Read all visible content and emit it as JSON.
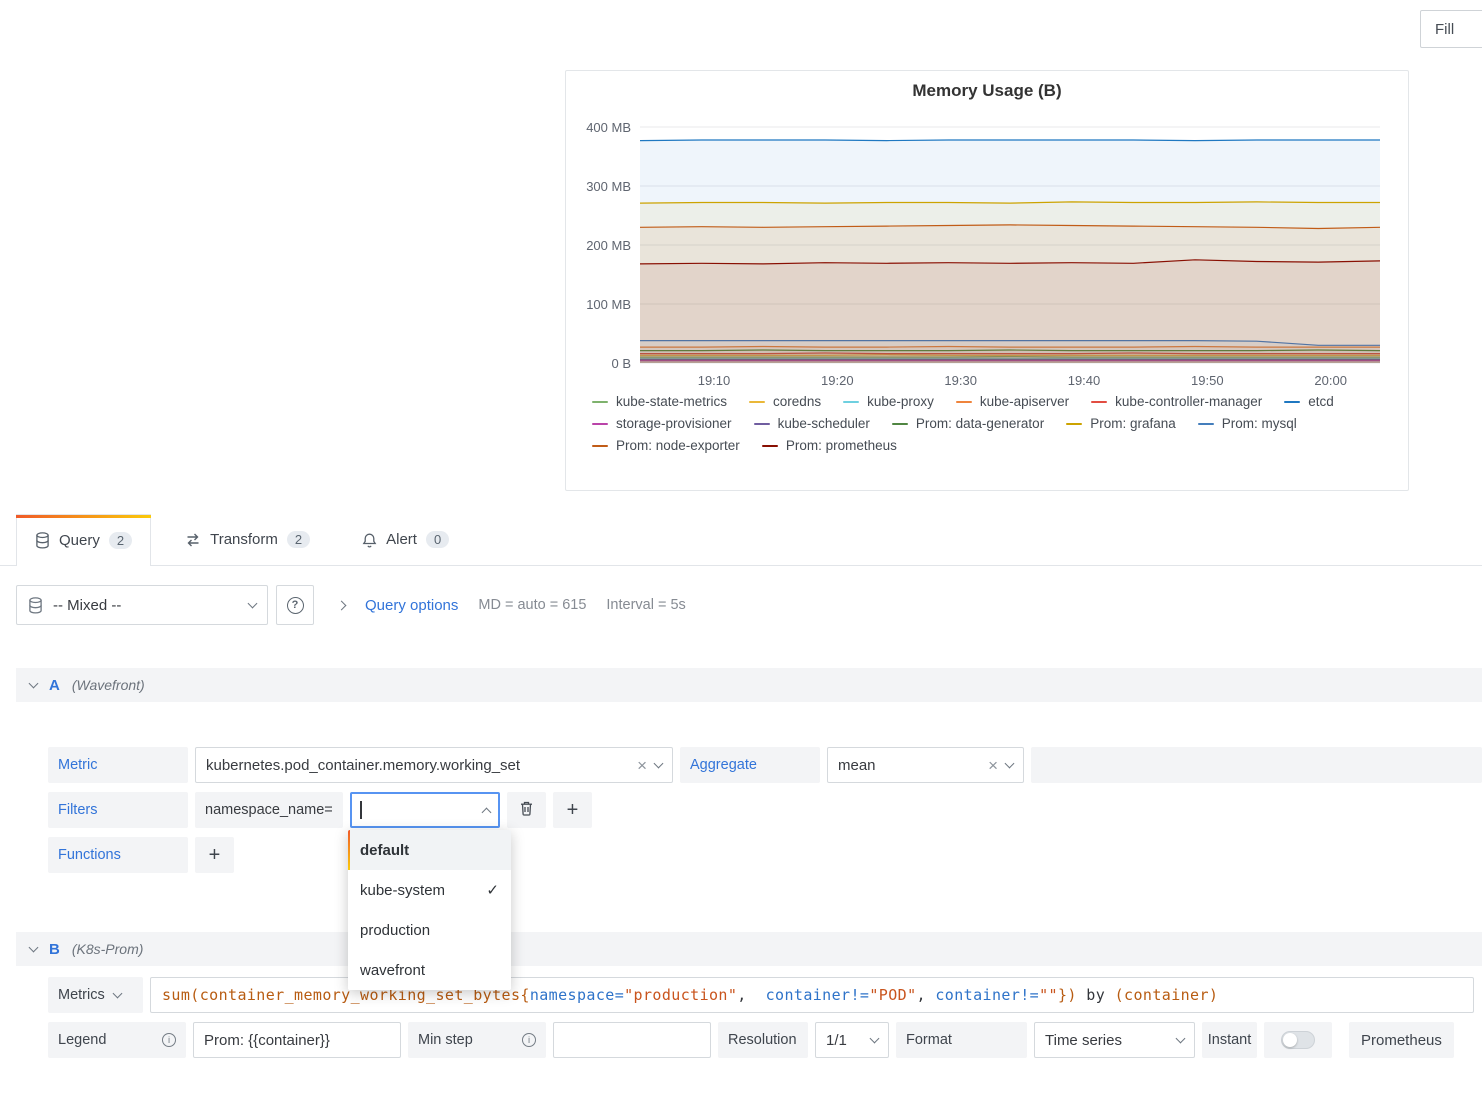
{
  "toolbar": {
    "fill": "Fill"
  },
  "panel": {
    "title": "Memory Usage (B)"
  },
  "tabs": [
    {
      "label": "Query",
      "count": "2"
    },
    {
      "label": "Transform",
      "count": "2"
    },
    {
      "label": "Alert",
      "count": "0"
    }
  ],
  "datasource_bar": {
    "selected": "-- Mixed --",
    "query_options_label": "Query options",
    "md_text": "MD = auto = 615",
    "interval_text": "Interval = 5s"
  },
  "query_a": {
    "ref": "A",
    "datasource": "(Wavefront)",
    "metric_label": "Metric",
    "metric_value": "kubernetes.pod_container.memory.working_set",
    "aggregate_label": "Aggregate",
    "aggregate_value": "mean",
    "filters_label": "Filters",
    "filter_key": "namespace_name=",
    "filter_input_value": "",
    "functions_label": "Functions",
    "dropdown_options": [
      {
        "label": "default",
        "highlighted": true,
        "selected": false
      },
      {
        "label": "kube-system",
        "highlighted": false,
        "selected": true
      },
      {
        "label": "production",
        "highlighted": false,
        "selected": false
      },
      {
        "label": "wavefront",
        "highlighted": false,
        "selected": false
      }
    ]
  },
  "query_b": {
    "ref": "B",
    "datasource": "(K8s-Prom)",
    "metrics_label": "Metrics",
    "expr_tokens": [
      {
        "text": "sum(container_memory_working_set_bytes{",
        "class": "tok-metric"
      },
      {
        "text": "namespace=",
        "class": "tok-label"
      },
      {
        "text": "\"production\"",
        "class": "tok-string"
      },
      {
        "text": ",  ",
        "class": "tok-plain"
      },
      {
        "text": "container!=",
        "class": "tok-label"
      },
      {
        "text": "\"POD\"",
        "class": "tok-string"
      },
      {
        "text": ", ",
        "class": "tok-plain"
      },
      {
        "text": "container!=",
        "class": "tok-label"
      },
      {
        "text": "\"\"",
        "class": "tok-string"
      },
      {
        "text": "})",
        "class": "tok-metric"
      },
      {
        "text": " by ",
        "class": "tok-plain"
      },
      {
        "text": "(container)",
        "class": "tok-metric"
      }
    ],
    "legend_label": "Legend",
    "legend_value": "Prom: {{container}}",
    "min_step_label": "Min step",
    "min_step_value": "",
    "resolution_label": "Resolution",
    "resolution_value": "1/1",
    "format_label": "Format",
    "format_value": "Time series",
    "instant_label": "Instant",
    "instant_on": false,
    "datasource_name": "Prometheus"
  },
  "chart_data": {
    "type": "line",
    "title": "Memory Usage (B)",
    "x_start": "19:04",
    "x_end": "20:04",
    "x_ticks": [
      "19:10",
      "19:20",
      "19:30",
      "19:40",
      "19:50",
      "20:00"
    ],
    "y_ticks": [
      {
        "v": 0,
        "label": "0 B"
      },
      {
        "v": 100,
        "label": "100 MB"
      },
      {
        "v": 200,
        "label": "200 MB"
      },
      {
        "v": 300,
        "label": "300 MB"
      },
      {
        "v": 400,
        "label": "400 MB"
      }
    ],
    "ylim_mb": [
      0,
      400
    ],
    "grid": true,
    "legend_position": "bottom",
    "series": [
      {
        "name": "kube-state-metrics",
        "color": "#7EB26D",
        "values_mb": [
          10,
          10,
          10,
          10,
          10,
          10,
          11,
          10,
          10,
          10,
          10,
          10,
          10
        ]
      },
      {
        "name": "coredns",
        "color": "#EAB839",
        "values_mb": [
          13,
          13,
          13,
          13,
          14,
          13,
          13,
          13,
          13,
          13,
          13,
          13,
          13
        ]
      },
      {
        "name": "kube-proxy",
        "color": "#6ED0E0",
        "values_mb": [
          8,
          8,
          8,
          8,
          8,
          8,
          8,
          8,
          8,
          8,
          8,
          8,
          8
        ]
      },
      {
        "name": "kube-apiserver",
        "color": "#EF843C",
        "values_mb": [
          27,
          27,
          28,
          27,
          27,
          28,
          27,
          27,
          27,
          28,
          27,
          27,
          27
        ]
      },
      {
        "name": "kube-controller-manager",
        "color": "#E24D42",
        "values_mb": [
          16,
          16,
          16,
          17,
          16,
          16,
          16,
          16,
          17,
          16,
          16,
          16,
          16
        ]
      },
      {
        "name": "etcd",
        "color": "#1F78C1",
        "values_mb": [
          377,
          378,
          378,
          378,
          377,
          378,
          378,
          378,
          378,
          377,
          378,
          378,
          378
        ]
      },
      {
        "name": "storage-provisioner",
        "color": "#BA43A9",
        "values_mb": [
          4,
          4,
          4,
          4,
          4,
          4,
          4,
          4,
          4,
          4,
          4,
          4,
          4
        ]
      },
      {
        "name": "kube-scheduler",
        "color": "#705DA0",
        "values_mb": [
          6,
          6,
          6,
          6,
          6,
          6,
          6,
          6,
          6,
          6,
          6,
          6,
          6
        ]
      },
      {
        "name": "Prom: data-generator",
        "color": "#508642",
        "values_mb": [
          21,
          21,
          22,
          21,
          21,
          21,
          22,
          21,
          21,
          21,
          21,
          22,
          21
        ]
      },
      {
        "name": "Prom: grafana",
        "color": "#CCA300",
        "values_mb": [
          271,
          272,
          272,
          271,
          272,
          272,
          271,
          273,
          272,
          272,
          273,
          272,
          272
        ]
      },
      {
        "name": "Prom: mysql",
        "color": "#447EBC",
        "values_mb": [
          38,
          38,
          38,
          38,
          38,
          38,
          38,
          38,
          38,
          38,
          37,
          30,
          30
        ]
      },
      {
        "name": "Prom: node-exporter",
        "color": "#C15C17",
        "values_mb": [
          230,
          231,
          230,
          231,
          232,
          233,
          234,
          233,
          232,
          231,
          230,
          228,
          230
        ]
      },
      {
        "name": "Prom: prometheus",
        "color": "#890F02",
        "values_mb": [
          168,
          169,
          168,
          170,
          169,
          170,
          169,
          170,
          169,
          175,
          172,
          171,
          173
        ]
      }
    ]
  }
}
